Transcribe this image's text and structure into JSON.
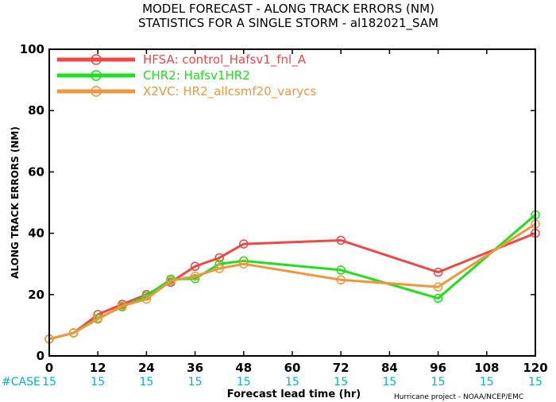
{
  "title_line1": "MODEL FORECAST - ALONG TRACK ERRORS (NM)",
  "title_line2": "STATISTICS FOR A SINGLE STORM - al182021_SAM",
  "case_label": "#CASE",
  "credit": "Hurricane project - NOAA/NCEP/EMC",
  "colors": {
    "HFSA": "#f04646",
    "CHR2": "#1ee11e",
    "X2VC": "#f0963c",
    "case": "#00b4c8"
  },
  "chart_data": {
    "type": "line",
    "title": "MODEL FORECAST - ALONG TRACK ERRORS (NM)",
    "subtitle": "STATISTICS FOR A SINGLE STORM - al182021_SAM",
    "xlabel": "Forecast lead time (hr)",
    "ylabel": "ALONG TRACK ERRORS (NM)",
    "xlim": [
      0,
      120
    ],
    "ylim": [
      0,
      100
    ],
    "xticks": [
      0,
      12,
      24,
      36,
      48,
      60,
      72,
      84,
      96,
      108,
      120
    ],
    "yticks": [
      0,
      20,
      40,
      60,
      80,
      100
    ],
    "grid": false,
    "legend_position": "top-left",
    "case_counts": [
      15,
      15,
      15,
      15,
      15,
      15,
      15,
      15,
      15,
      15,
      15
    ],
    "series": [
      {
        "name": "HFSA: control_Hafsv1_fnl_A",
        "x": [
          0,
          6,
          12,
          18,
          24,
          30,
          36,
          42,
          48,
          72,
          96,
          120
        ],
        "values": [
          5.5,
          7.5,
          13.5,
          16.8,
          20,
          24,
          29.2,
          32,
          36.5,
          37.7,
          27.3,
          40
        ]
      },
      {
        "name": "CHR2: Hafsv1HR2",
        "x": [
          0,
          6,
          12,
          18,
          24,
          30,
          36,
          42,
          48,
          72,
          96,
          120
        ],
        "values": [
          5.5,
          7.5,
          12.3,
          16,
          19.5,
          25,
          25.2,
          30,
          31,
          28,
          18.8,
          46
        ]
      },
      {
        "name": "X2VC: HR2_allcsmf20_varycs",
        "x": [
          0,
          6,
          12,
          18,
          24,
          30,
          36,
          42,
          48,
          72,
          96,
          120
        ],
        "values": [
          5.5,
          7.5,
          12,
          16.3,
          18.5,
          24.5,
          26,
          28.5,
          30,
          24.8,
          22.5,
          43
        ]
      }
    ]
  }
}
